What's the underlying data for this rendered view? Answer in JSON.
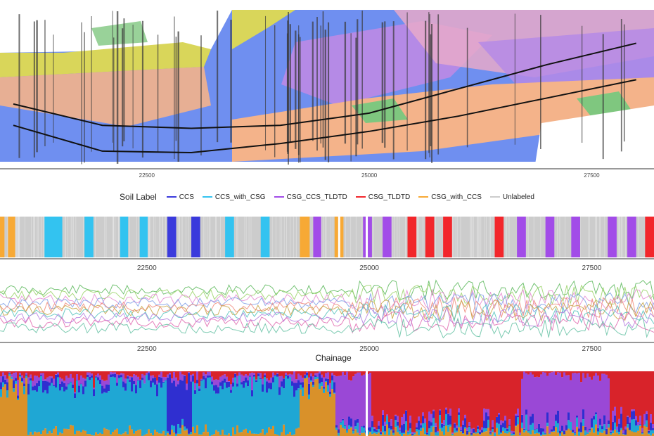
{
  "chart_data": [
    {
      "type": "area",
      "panel": "geological-section",
      "x": {
        "ticks": [
          22500,
          25000,
          27500
        ]
      },
      "ylim": null,
      "colors": {
        "fill_blue": "#6f8ff0",
        "fill_purple": "#b58ae6",
        "fill_peach": "#f4b38a",
        "fill_yellow": "#d9d65a",
        "fill_green": "#7fc77f",
        "fill_pink": "#e8a9c9",
        "tunnel_line": "#111111"
      },
      "tunnel_lines": [
        {
          "name": "",
          "x": [
            21000,
            22000,
            23000,
            24000,
            25000,
            26000,
            27000,
            28000
          ],
          "y": [
            0.62,
            0.76,
            0.78,
            0.76,
            0.68,
            0.52,
            0.36,
            0.22
          ]
        },
        {
          "name": "",
          "x": [
            21000,
            22000,
            23000,
            24000,
            25000,
            26000,
            27000,
            28000
          ],
          "y": [
            0.76,
            0.93,
            0.94,
            0.88,
            0.8,
            0.7,
            0.58,
            0.46
          ]
        }
      ]
    },
    {
      "type": "heatmap",
      "panel": "soil-label-strip",
      "legend": {
        "title": "Soil Label",
        "items": [
          {
            "label": "CCS",
            "color": "#3a3adc"
          },
          {
            "label": "CCS_with_CSG",
            "color": "#33c3f0"
          },
          {
            "label": "CSG_CCS_TLDTD",
            "color": "#a24ce8"
          },
          {
            "label": "CSG_TLDTD",
            "color": "#f2262b"
          },
          {
            "label": "CSG_with_CCS",
            "color": "#f7a935"
          },
          {
            "label": "Unlabeled",
            "color": "#cccccc"
          }
        ]
      },
      "x": {
        "ticks": [
          22500,
          25000,
          27500
        ]
      },
      "segments": [
        {
          "start": 20850,
          "end": 20900,
          "label": "CSG_with_CCS"
        },
        {
          "start": 20940,
          "end": 21020,
          "label": "CSG_with_CCS"
        },
        {
          "start": 21350,
          "end": 21550,
          "label": "CCS_with_CSG"
        },
        {
          "start": 21800,
          "end": 21900,
          "label": "CCS_with_CSG"
        },
        {
          "start": 22200,
          "end": 22290,
          "label": "CCS_with_CSG"
        },
        {
          "start": 22420,
          "end": 22510,
          "label": "CCS_with_CSG"
        },
        {
          "start": 22730,
          "end": 22830,
          "label": "CCS"
        },
        {
          "start": 23000,
          "end": 23100,
          "label": "CCS"
        },
        {
          "start": 23380,
          "end": 23480,
          "label": "CCS_with_CSG"
        },
        {
          "start": 23780,
          "end": 23880,
          "label": "CCS_with_CSG"
        },
        {
          "start": 24220,
          "end": 24330,
          "label": "CSG_with_CCS"
        },
        {
          "start": 24370,
          "end": 24460,
          "label": "CSG_CCS_TLDTD"
        },
        {
          "start": 24610,
          "end": 24710,
          "label": "CSG_with_CCS"
        },
        {
          "start": 24930,
          "end": 25030,
          "label": "CSG_CCS_TLDTD"
        },
        {
          "start": 25150,
          "end": 25250,
          "label": "CSG_CCS_TLDTD"
        },
        {
          "start": 25430,
          "end": 25530,
          "label": "CSG_TLDTD"
        },
        {
          "start": 25630,
          "end": 25730,
          "label": "CSG_TLDTD"
        },
        {
          "start": 25830,
          "end": 25930,
          "label": "CSG_TLDTD"
        },
        {
          "start": 26410,
          "end": 26510,
          "label": "CSG_TLDTD"
        },
        {
          "start": 26660,
          "end": 26760,
          "label": "CSG_CCS_TLDTD"
        },
        {
          "start": 26980,
          "end": 27080,
          "label": "CSG_CCS_TLDTD"
        },
        {
          "start": 27270,
          "end": 27370,
          "label": "CSG_CCS_TLDTD"
        },
        {
          "start": 27680,
          "end": 27780,
          "label": "CSG_CCS_TLDTD"
        },
        {
          "start": 27900,
          "end": 28000,
          "label": "CSG_CCS_TLDTD"
        },
        {
          "start": 28100,
          "end": 28200,
          "label": "CSG_TLDTD"
        }
      ],
      "gaps": [
        24650,
        24960
      ]
    },
    {
      "type": "line",
      "panel": "sensor-traces",
      "x": {
        "ticks": [
          22500,
          25000,
          27500
        ]
      },
      "ylim": [
        0,
        1
      ],
      "xlabel": "Chainage",
      "series": [
        {
          "name": "",
          "color": "#5cb85c",
          "level": 0.18
        },
        {
          "name": "",
          "color": "#9bd36a",
          "level": 0.26
        },
        {
          "name": "",
          "color": "#e58ad1",
          "level": 0.34
        },
        {
          "name": "",
          "color": "#7fa0e8",
          "level": 0.4
        },
        {
          "name": "",
          "color": "#f08a7a",
          "level": 0.47
        },
        {
          "name": "",
          "color": "#c7a545",
          "level": 0.52
        },
        {
          "name": "",
          "color": "#54c3bd",
          "level": 0.58
        },
        {
          "name": "",
          "color": "#b47ee0",
          "level": 0.64
        },
        {
          "name": "",
          "color": "#e06ab0",
          "level": 0.72
        },
        {
          "name": "",
          "color": "#66c2a5",
          "level": 0.82
        }
      ]
    },
    {
      "type": "area",
      "panel": "class-probabilities",
      "x": {
        "ticks": [
          22500,
          25000,
          27500
        ]
      },
      "ylim": [
        0,
        1
      ],
      "stack_order": [
        "CSG_with_CCS",
        "CCS_with_CSG",
        "CCS",
        "CSG_CCS_TLDTD",
        "CSG_TLDTD"
      ],
      "colors": {
        "CCS": "#2f2fd0",
        "CCS_with_CSG": "#1fa7d4",
        "CSG_CCS_TLDTD": "#9a48d6",
        "CSG_TLDTD": "#d8232a",
        "CSG_with_CCS": "#d9912a"
      },
      "dominant_spans": [
        {
          "start": 20850,
          "end": 21150,
          "label": "CSG_with_CCS"
        },
        {
          "start": 21150,
          "end": 22700,
          "label": "CCS_with_CSG"
        },
        {
          "start": 22700,
          "end": 23000,
          "label": "CCS"
        },
        {
          "start": 23000,
          "end": 24200,
          "label": "CCS_with_CSG"
        },
        {
          "start": 24200,
          "end": 24600,
          "label": "CSG_with_CCS"
        },
        {
          "start": 24600,
          "end": 25000,
          "label": "CSG_CCS_TLDTD"
        },
        {
          "start": 25000,
          "end": 26700,
          "label": "CSG_TLDTD"
        },
        {
          "start": 26700,
          "end": 27700,
          "label": "CSG_CCS_TLDTD"
        },
        {
          "start": 27700,
          "end": 28200,
          "label": "CSG_TLDTD"
        }
      ]
    }
  ]
}
